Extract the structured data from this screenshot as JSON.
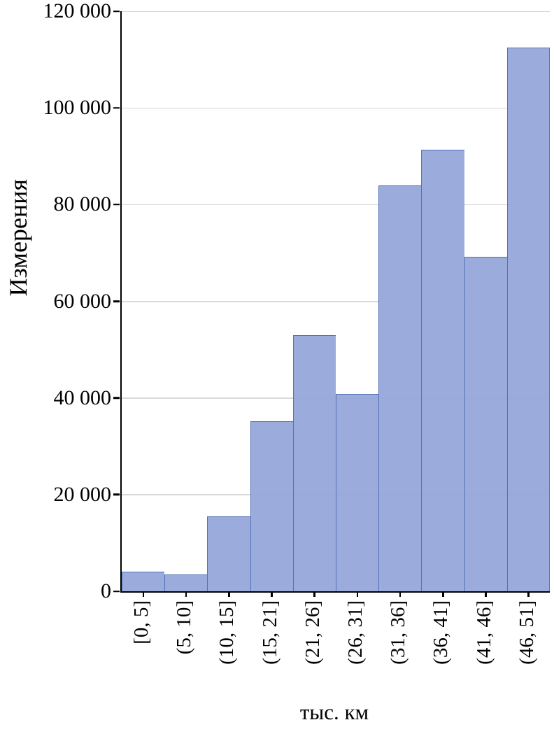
{
  "chart_data": {
    "type": "bar",
    "subtype": "histogram",
    "title": "",
    "xlabel": "тыс. км",
    "ylabel": "Измерения",
    "categories": [
      "[0, 5]",
      "(5, 10]",
      "(10, 15]",
      "(15, 21]",
      "(21, 26]",
      "(26, 31]",
      "(31, 36]",
      "(36, 41]",
      "(41, 46]",
      "(46, 51]"
    ],
    "values": [
      4000,
      3500,
      15500,
      35200,
      53000,
      40800,
      84000,
      91300,
      69200,
      112500
    ],
    "ylim": [
      0,
      120000
    ],
    "y_ticks": [
      0,
      20000,
      40000,
      60000,
      80000,
      100000,
      120000
    ],
    "y_tick_labels": [
      "0",
      "20 000",
      "40 000",
      "60 000",
      "80 000",
      "100 000",
      "120 000"
    ],
    "grid": "horizontal",
    "legend": "none",
    "bar_fill": "rgba(150,168,218,0.95)",
    "bar_border": "#5271b6",
    "gridline_color": "#d9d9d9",
    "axis_color": "#000000"
  }
}
